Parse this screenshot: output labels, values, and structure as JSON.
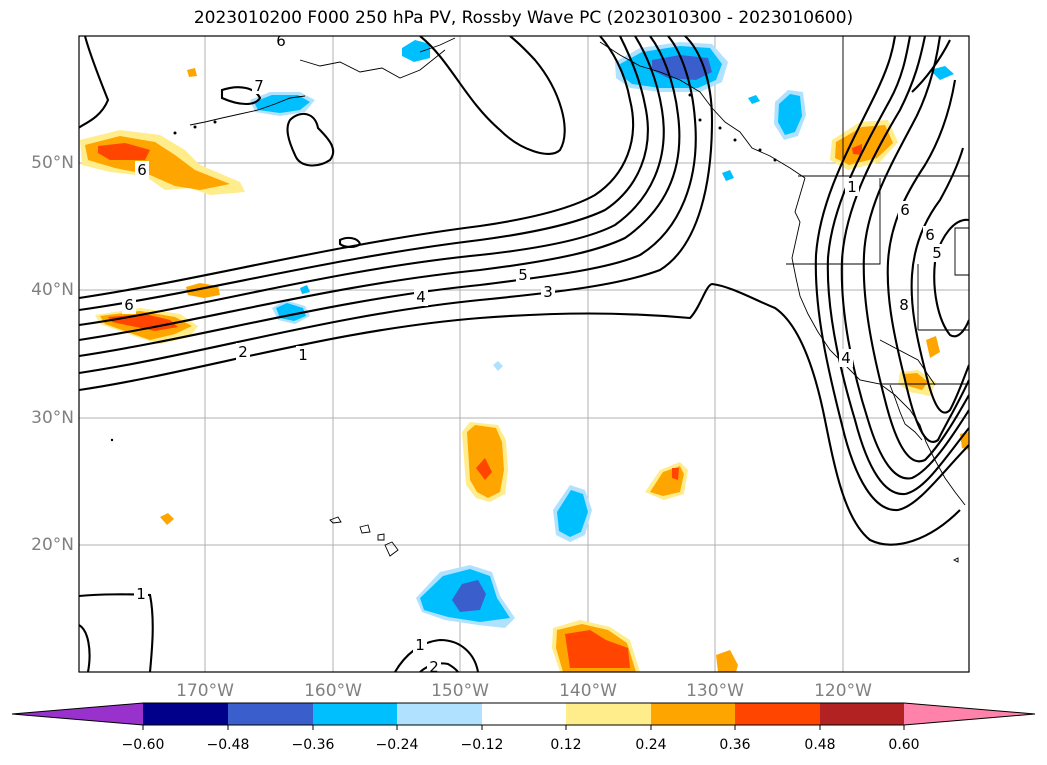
{
  "title": "2023010200 F000 250 hPa PV, Rossby Wave PC (2023010300 - 2023010600)",
  "map": {
    "latitude_labels": [
      "50°N",
      "40°N",
      "30°N",
      "20°N"
    ],
    "longitude_labels": [
      "170°W",
      "160°W",
      "150°W",
      "140°W",
      "130°W",
      "120°W"
    ],
    "contour_labels": [
      "7",
      "6",
      "6",
      "6",
      "5",
      "4",
      "3",
      "2",
      "1",
      "1",
      "1",
      "1",
      "2",
      "5",
      "6",
      "6",
      "8",
      "4"
    ]
  },
  "colorbar": {
    "ticks": [
      "−0.60",
      "−0.48",
      "−0.36",
      "−0.24",
      "−0.12",
      "0.12",
      "0.24",
      "0.36",
      "0.48",
      "0.60"
    ],
    "colors": [
      "#9932cc",
      "#00008b",
      "#3a5fcd",
      "#00bfff",
      "#b0e2ff",
      "#ffffff",
      "#ffec8b",
      "#ffa500",
      "#ff4500",
      "#b22222",
      "#ff82ab"
    ]
  },
  "colors": {
    "grid": "#b0b0b0",
    "label_gray": "#808080",
    "contour": "#000000"
  }
}
